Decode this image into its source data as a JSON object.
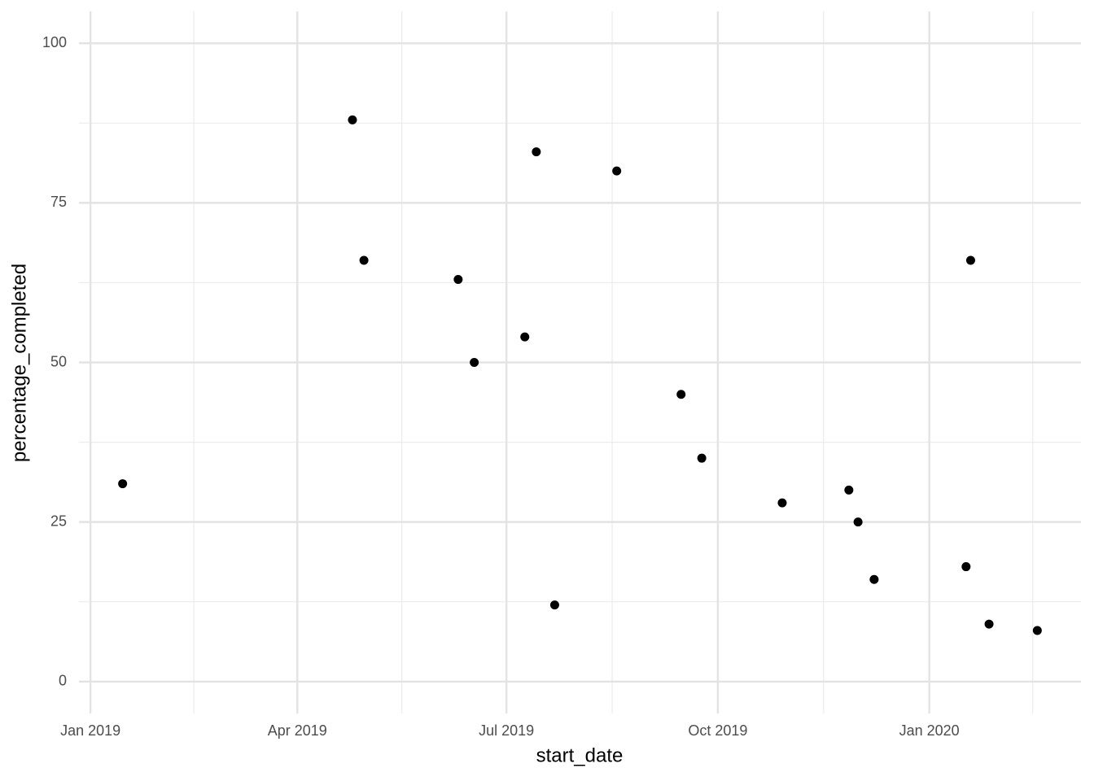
{
  "chart_data": {
    "type": "scatter",
    "x_label": "start_date",
    "y_label": "percentage_completed",
    "x": [
      14,
      114,
      119,
      160,
      167,
      189,
      194,
      202,
      229,
      257,
      266,
      301,
      330,
      334,
      341,
      381,
      383,
      391,
      412
    ],
    "values": [
      31,
      88,
      66,
      63,
      50,
      54,
      83,
      12,
      80,
      45,
      35,
      28,
      30,
      25,
      16,
      18,
      66,
      9,
      8
    ],
    "color": "#000000",
    "xlim": [
      -5,
      431
    ],
    "xticks": [
      {
        "value": 0,
        "label": "Jan 2019"
      },
      {
        "value": 90,
        "label": "Apr 2019"
      },
      {
        "value": 181,
        "label": "Jul 2019"
      },
      {
        "value": 273,
        "label": "Oct 2019"
      },
      {
        "value": 365,
        "label": "Jan 2020"
      }
    ],
    "ylim": [
      -5,
      105
    ],
    "yticks": [
      0,
      25,
      50,
      75,
      100
    ],
    "grid": true
  }
}
